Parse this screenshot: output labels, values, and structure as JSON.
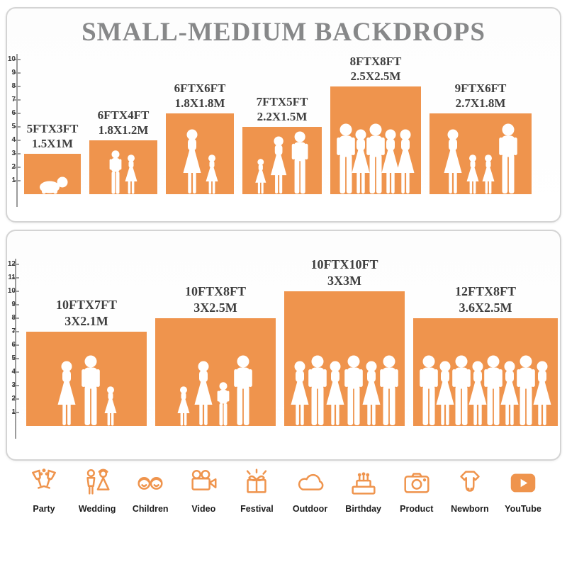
{
  "title": "SMALL-MEDIUM BACKDROPS",
  "colors": {
    "orange": "#EF944D",
    "title_gray": "#878889",
    "label_dark": "#3e3e3e",
    "icon_orange": "#EF944D",
    "silhouette_white": "#FFFFFF"
  },
  "panel_top": {
    "ruler_max": 10,
    "items": [
      {
        "size_ft": "5FTX3FT",
        "size_m": "1.5X1M",
        "w_ft": 5,
        "h_ft": 3,
        "figures": [
          "baby"
        ]
      },
      {
        "size_ft": "6FTX4FT",
        "size_m": "1.8X1.2M",
        "w_ft": 6,
        "h_ft": 4,
        "figures": [
          "boy",
          "girl"
        ]
      },
      {
        "size_ft": "6FTX6FT",
        "size_m": "1.8X1.8M",
        "w_ft": 6,
        "h_ft": 6,
        "figures": [
          "woman",
          "girl"
        ]
      },
      {
        "size_ft": "7FTX5FT",
        "size_m": "2.2X1.5M",
        "w_ft": 7,
        "h_ft": 5,
        "figures": [
          "girl",
          "woman",
          "man"
        ]
      },
      {
        "size_ft": "8FTX8FT",
        "size_m": "2.5X2.5M",
        "w_ft": 8,
        "h_ft": 8,
        "figures": [
          "man",
          "woman",
          "man",
          "woman",
          "woman"
        ]
      },
      {
        "size_ft": "9FTX6FT",
        "size_m": "2.7X1.8M",
        "w_ft": 9,
        "h_ft": 6,
        "figures": [
          "woman",
          "girl",
          "girl",
          "man"
        ]
      }
    ]
  },
  "panel_bottom": {
    "ruler_max": 12,
    "items": [
      {
        "size_ft": "10FTX7FT",
        "size_m": "3X2.1M",
        "w_ft": 10,
        "h_ft": 7,
        "figures": [
          "woman",
          "man",
          "girl"
        ]
      },
      {
        "size_ft": "10FTX8FT",
        "size_m": "3X2.5M",
        "w_ft": 10,
        "h_ft": 8,
        "figures": [
          "girl",
          "woman",
          "boy",
          "man"
        ]
      },
      {
        "size_ft": "10FTX10FT",
        "size_m": "3X3M",
        "w_ft": 10,
        "h_ft": 10,
        "figures": [
          "woman",
          "man",
          "woman",
          "man",
          "woman",
          "man"
        ]
      },
      {
        "size_ft": "12FTX8FT",
        "size_m": "3.6X2.5M",
        "w_ft": 12,
        "h_ft": 8,
        "figures": [
          "man",
          "woman",
          "man",
          "woman",
          "man",
          "woman",
          "man",
          "woman"
        ]
      }
    ]
  },
  "categories": [
    {
      "label": "Party",
      "icon": "party-icon"
    },
    {
      "label": "Wedding",
      "icon": "wedding-icon"
    },
    {
      "label": "Children",
      "icon": "children-icon"
    },
    {
      "label": "Video",
      "icon": "video-icon"
    },
    {
      "label": "Festival",
      "icon": "festival-icon"
    },
    {
      "label": "Outdoor",
      "icon": "outdoor-icon"
    },
    {
      "label": "Birthday",
      "icon": "birthday-icon"
    },
    {
      "label": "Product",
      "icon": "product-icon"
    },
    {
      "label": "Newborn",
      "icon": "newborn-icon"
    },
    {
      "label": "YouTube",
      "icon": "youtube-icon"
    }
  ]
}
